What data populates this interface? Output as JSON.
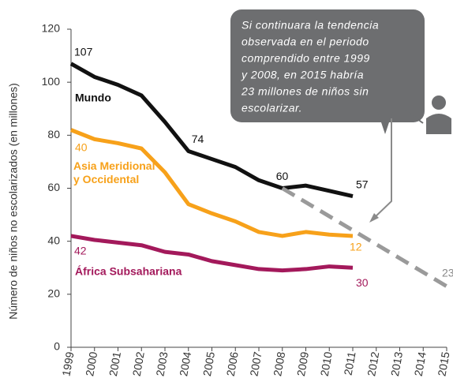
{
  "chart_data": {
    "type": "line",
    "y_label": "Número de niños no escolarizados (en millones)",
    "x": [
      1999,
      2000,
      2001,
      2002,
      2003,
      2004,
      2005,
      2006,
      2007,
      2008,
      2009,
      2010,
      2011
    ],
    "xlim": [
      1999,
      2015
    ],
    "xticks": [
      1999,
      2000,
      2001,
      2002,
      2003,
      2004,
      2005,
      2006,
      2007,
      2008,
      2009,
      2010,
      2011,
      2012,
      2013,
      2014,
      2015
    ],
    "ylim": [
      0,
      120
    ],
    "yticks": [
      0,
      20,
      40,
      60,
      80,
      100,
      120
    ],
    "grid": false,
    "series": [
      {
        "name": "Mundo",
        "color": "#111111",
        "values": [
          107,
          102,
          99,
          95,
          85,
          74,
          71,
          68,
          63,
          60,
          61,
          59,
          57
        ],
        "value_labels": [
          "107",
          null,
          null,
          null,
          null,
          "74",
          null,
          null,
          null,
          "60",
          null,
          null,
          "57"
        ]
      },
      {
        "name": "Asia Meridional y Occidental",
        "color": "#f7a11a",
        "values": [
          82,
          78.5,
          77,
          75,
          66,
          54,
          50.5,
          47.5,
          43.5,
          42,
          43.5,
          42.5,
          42
        ]
      },
      {
        "name": "África Subsahariana",
        "color": "#a3195b",
        "values": [
          42,
          40.5,
          39.5,
          38.5,
          36,
          35,
          32.5,
          31,
          29.5,
          29,
          29.5,
          30.5,
          30
        ],
        "value_labels": [
          "42",
          null,
          null,
          null,
          null,
          null,
          null,
          null,
          null,
          null,
          null,
          null,
          "30"
        ]
      },
      {
        "color": "#9a9a9a",
        "dashed": true,
        "x": [
          2008,
          2015
        ],
        "values": [
          60,
          23
        ],
        "value_labels": [
          null,
          "23"
        ]
      }
    ],
    "annotations": [
      "40",
      "12"
    ],
    "callout": [
      "Si continuara la tendencia",
      "observada en el periodo",
      "comprendido entre 1999",
      "y 2008, en 2015 habría",
      "23 millones de niños sin",
      "escolarizar."
    ]
  }
}
